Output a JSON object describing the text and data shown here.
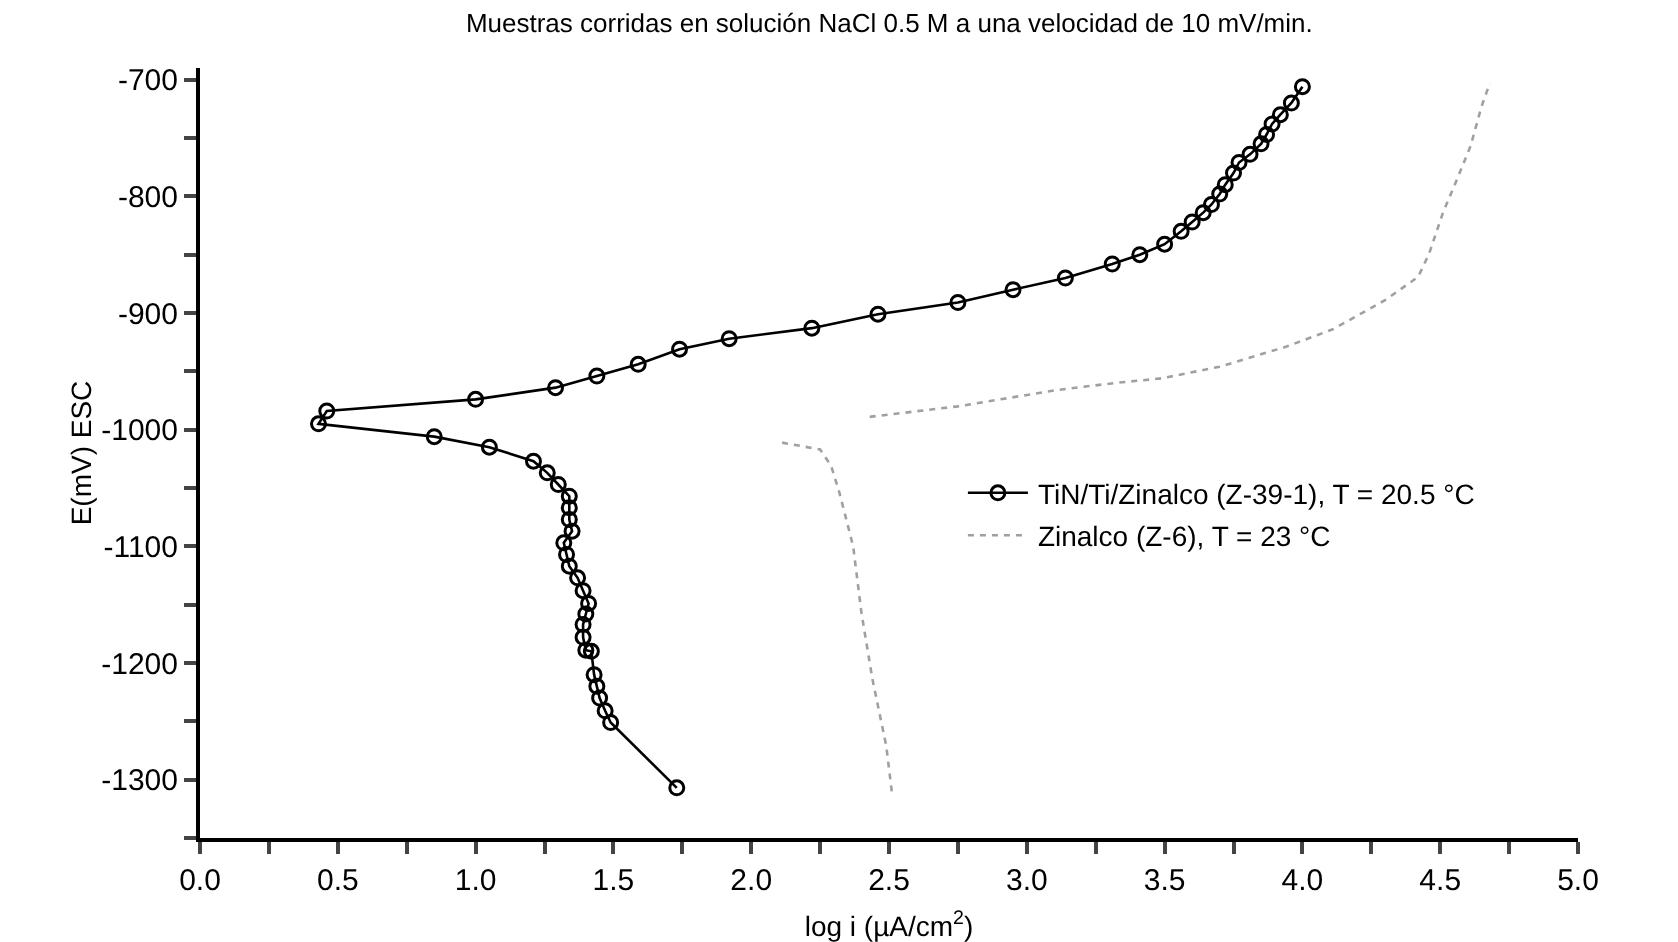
{
  "chart_data": {
    "type": "line",
    "title": "Muestras corridas en solución NaCl 0.5 M a una velocidad de 10 mV/min.",
    "xlabel": "log i (µA/cm$^{2}$)",
    "ylabel": "E(mV) ESC",
    "series": [
      {
        "name": "TiN/Ti/Zinalco (Z-39-1), T = 20.5 °C",
        "color": "#000000",
        "marker": "circle",
        "line_style": "solid",
        "x": [
          1.73,
          1.49,
          1.47,
          1.45,
          1.44,
          1.43,
          1.42,
          1.4,
          1.39,
          1.39,
          1.4,
          1.41,
          1.39,
          1.37,
          1.34,
          1.33,
          1.32,
          1.35,
          1.34,
          1.34,
          1.34,
          1.3,
          1.26,
          1.21,
          1.05,
          0.85,
          0.43,
          0.46,
          1.0,
          1.29,
          1.44,
          1.59,
          1.74,
          1.92,
          2.22,
          2.46,
          2.75,
          2.95,
          3.14,
          3.31,
          3.41,
          3.5,
          3.56,
          3.6,
          3.64,
          3.67,
          3.7,
          3.72,
          3.75,
          3.77,
          3.81,
          3.85,
          3.87,
          3.89,
          3.92,
          3.96,
          4.0
        ],
        "values": [
          -1307,
          -1251,
          -1241,
          -1230,
          -1220,
          -1210,
          -1190,
          -1189,
          -1178,
          -1167,
          -1158,
          -1149,
          -1138,
          -1127,
          -1117,
          -1107,
          -1097,
          -1087,
          -1077,
          -1067,
          -1057,
          -1047,
          -1037,
          -1027,
          -1015,
          -1006,
          -995,
          -984,
          -974,
          -964,
          -954,
          -944,
          -931,
          -922,
          -913,
          -901,
          -891,
          -880,
          -870,
          -858,
          -850,
          -841,
          -830,
          -822,
          -814,
          -807,
          -798,
          -790,
          -780,
          -771,
          -764,
          -755,
          -747,
          -738,
          -730,
          -720,
          -706
        ]
      },
      {
        "name": "Zinalco (Z-6), T = 23 °C",
        "color": "#a0a0a0",
        "marker": "none",
        "line_style": "dotted",
        "x": [
          2.51,
          2.49,
          2.44,
          2.4,
          2.37,
          2.32,
          2.29,
          2.25,
          2.11,
          null,
          2.43,
          2.75,
          3.11,
          3.32,
          3.49,
          3.7,
          3.94,
          4.11,
          4.3,
          4.42,
          4.46,
          4.51,
          4.56,
          4.61,
          4.65,
          4.68
        ],
        "values": [
          -1310,
          -1271,
          -1214,
          -1157,
          -1100,
          -1054,
          -1031,
          -1017,
          -1011,
          null,
          -989,
          -980,
          -966,
          -960,
          -956,
          -946,
          -929,
          -914,
          -889,
          -869,
          -849,
          -814,
          -786,
          -757,
          -723,
          -703
        ]
      }
    ],
    "xlim": [
      0,
      5
    ],
    "xticks": [
      {
        "value": 0,
        "label": "0.0"
      },
      {
        "value": 0.25,
        "label": null
      },
      {
        "value": 0.5,
        "label": "0.5"
      },
      {
        "value": 0.75,
        "label": null
      },
      {
        "value": 1,
        "label": "1.0"
      },
      {
        "value": 1.25,
        "label": null
      },
      {
        "value": 1.5,
        "label": "1.5"
      },
      {
        "value": 1.75,
        "label": null
      },
      {
        "value": 2,
        "label": "2.0"
      },
      {
        "value": 2.25,
        "label": null
      },
      {
        "value": 2.5,
        "label": "2.5"
      },
      {
        "value": 2.75,
        "label": null
      },
      {
        "value": 3,
        "label": "3.0"
      },
      {
        "value": 3.25,
        "label": null
      },
      {
        "value": 3.5,
        "label": "3.5"
      },
      {
        "value": 3.75,
        "label": null
      },
      {
        "value": 4,
        "label": "4.0"
      },
      {
        "value": 4.25,
        "label": null
      },
      {
        "value": 4.5,
        "label": "4.5"
      },
      {
        "value": 4.75,
        "label": null
      },
      {
        "value": 5,
        "label": "5.0"
      }
    ],
    "ylim": [
      -1350,
      -690
    ],
    "yticks": [
      {
        "value": -1350,
        "label": null
      },
      -1300,
      {
        "value": -1250,
        "label": null
      },
      -1200,
      {
        "value": -1150,
        "label": null
      },
      -1100,
      {
        "value": -1050,
        "label": null
      },
      -1000,
      {
        "value": -950,
        "label": null
      },
      -900,
      {
        "value": -850,
        "label": null
      },
      -800,
      {
        "value": -750,
        "label": null
      },
      -700
    ],
    "grid": false,
    "legend": "right"
  }
}
